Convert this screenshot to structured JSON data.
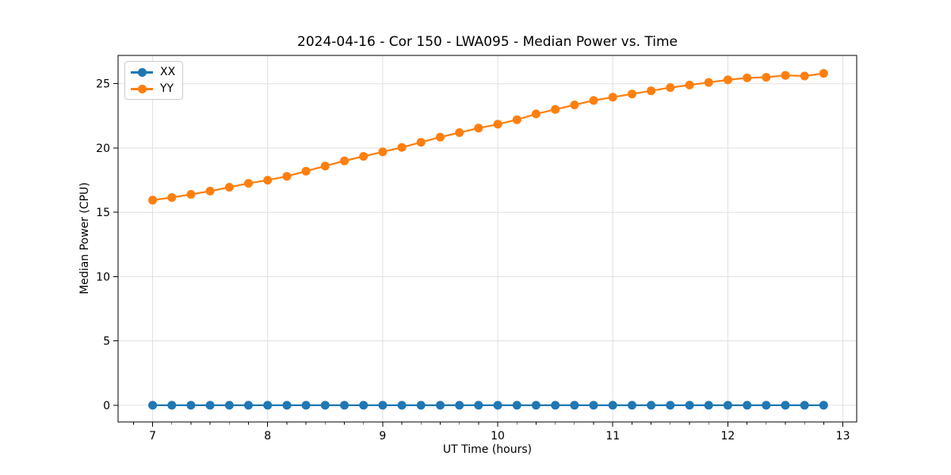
{
  "chart_data": {
    "type": "line",
    "title": "2024-04-16 - Cor 150 - LWA095 - Median Power vs. Time",
    "xlabel": "UT Time (hours)",
    "ylabel": "Median Power (CPU)",
    "xlim": [
      6.7,
      13.12
    ],
    "ylim": [
      -1.3,
      27.2
    ],
    "xticks": [
      7,
      8,
      9,
      10,
      11,
      12,
      13
    ],
    "yticks": [
      0,
      5,
      10,
      15,
      20,
      25
    ],
    "x_minor_ticks_per_major": 6,
    "grid": true,
    "grid_color": "#e0e0e0",
    "legend_position": "upper-left",
    "x": [
      7.0,
      7.167,
      7.333,
      7.5,
      7.667,
      7.833,
      8.0,
      8.167,
      8.333,
      8.5,
      8.667,
      8.833,
      9.0,
      9.167,
      9.333,
      9.5,
      9.667,
      9.833,
      10.0,
      10.167,
      10.333,
      10.5,
      10.667,
      10.833,
      11.0,
      11.167,
      11.333,
      11.5,
      11.667,
      11.833,
      12.0,
      12.167,
      12.333,
      12.5,
      12.667,
      12.833
    ],
    "series": [
      {
        "name": "XX",
        "color": "#1f77b4",
        "values": [
          0,
          0,
          0,
          0,
          0,
          0,
          0,
          0,
          0,
          0,
          0,
          0,
          0,
          0,
          0,
          0,
          0,
          0,
          0,
          0,
          0,
          0,
          0,
          0,
          0,
          0,
          0,
          0,
          0,
          0,
          0,
          0,
          0,
          0,
          0,
          0
        ]
      },
      {
        "name": "YY",
        "color": "#ff7f0e",
        "values": [
          15.95,
          16.15,
          16.4,
          16.65,
          16.95,
          17.25,
          17.5,
          17.8,
          18.2,
          18.6,
          19.0,
          19.35,
          19.7,
          20.05,
          20.45,
          20.85,
          21.2,
          21.55,
          21.85,
          22.2,
          22.65,
          23.0,
          23.35,
          23.7,
          23.95,
          24.2,
          24.45,
          24.7,
          24.9,
          25.1,
          25.3,
          25.45,
          25.5,
          25.65,
          25.6,
          25.8
        ]
      }
    ]
  }
}
